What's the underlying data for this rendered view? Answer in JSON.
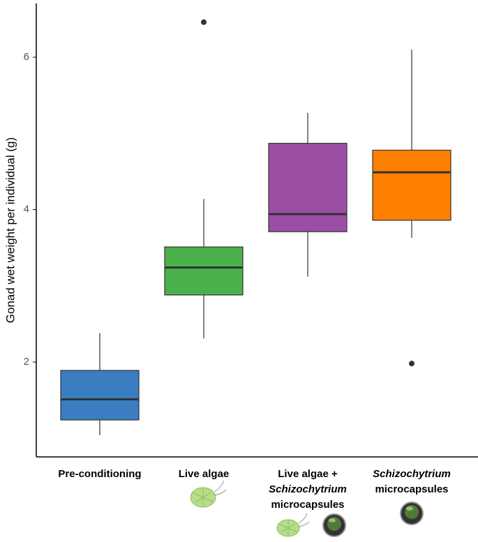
{
  "chart_data": {
    "type": "box",
    "y_label": "Gonad wet weight per individual (g)",
    "categories": [
      [
        "Pre-conditioning"
      ],
      [
        "Live algae"
      ],
      [
        "Live algae +",
        {
          "text": "Schizochytrium",
          "italic": true
        },
        "microcapsules"
      ],
      [
        {
          "text": "Schizochytrium",
          "italic": true
        },
        "microcapsules"
      ]
    ],
    "boxes": [
      {
        "low": 1.04,
        "q1": 1.24,
        "median": 1.51,
        "q3": 1.89,
        "high": 2.38,
        "outliers": [],
        "color": "#3a7dc0"
      },
      {
        "low": 2.31,
        "q1": 2.88,
        "median": 3.24,
        "q3": 3.51,
        "high": 4.14,
        "outliers": [
          6.46
        ],
        "color": "#4ab04a"
      },
      {
        "low": 3.12,
        "q1": 3.71,
        "median": 3.94,
        "q3": 4.87,
        "high": 5.27,
        "outliers": [],
        "color": "#9b4ea3"
      },
      {
        "low": 3.63,
        "q1": 3.86,
        "median": 4.49,
        "q3": 4.78,
        "high": 6.1,
        "outliers": [
          1.98
        ],
        "color": "#ff7f00"
      }
    ],
    "ylim": [
      0.755,
      6.705
    ],
    "yticks": [
      2,
      4,
      6
    ],
    "grid": false
  }
}
